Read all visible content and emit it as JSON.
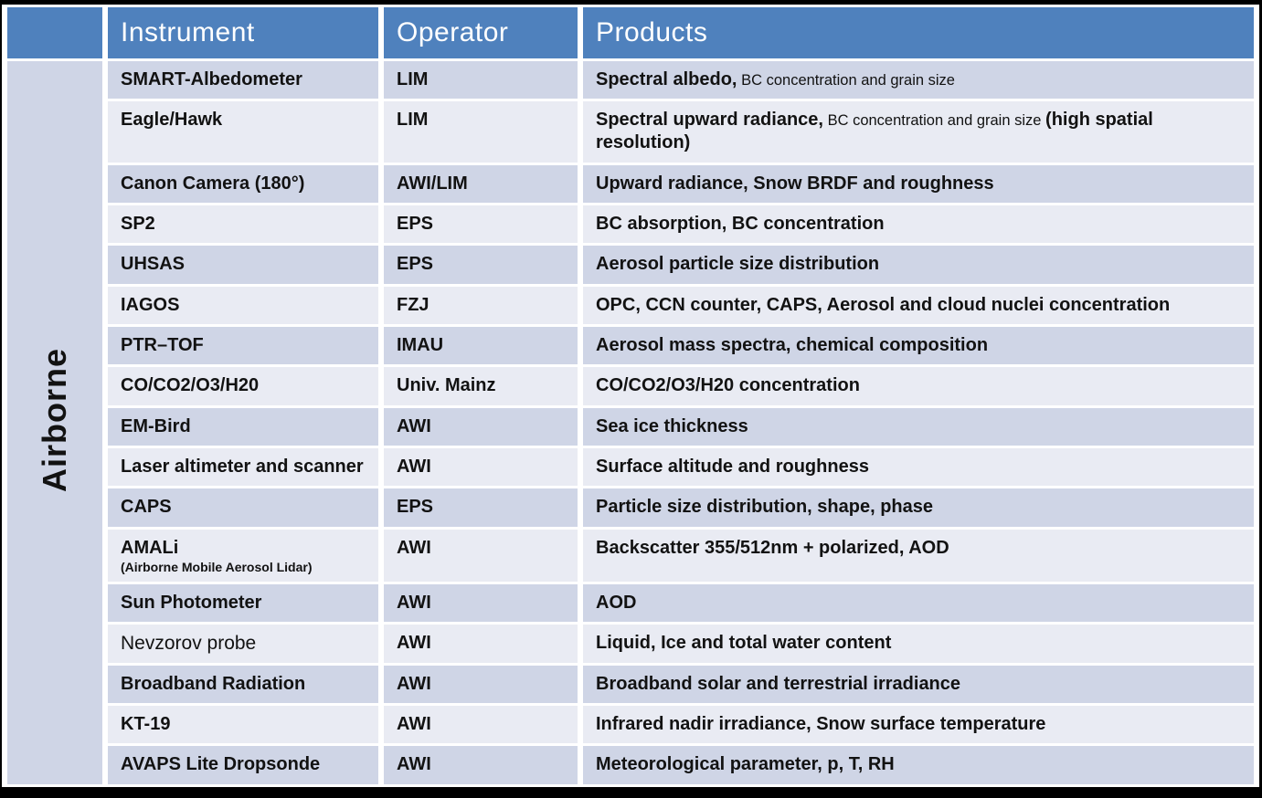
{
  "colors": {
    "header_bg": "#4F81BD",
    "band_dark": "#CFD5E6",
    "band_light": "#E9EBF3",
    "header_text": "#FFFFFF",
    "body_text": "#121212",
    "frame": "#000000",
    "gap": "#FFFFFF"
  },
  "table": {
    "group_label": "Airborne",
    "columns": [
      "Instrument",
      "Operator",
      "Products"
    ],
    "rows": [
      {
        "instrument": "SMART-Albedometer",
        "operator": "LIM",
        "products": [
          {
            "text": "Spectral albedo,",
            "style": "primary"
          },
          {
            "text": " BC concentration and grain size",
            "style": "secondary"
          }
        ]
      },
      {
        "instrument": "Eagle/Hawk",
        "operator": "LIM",
        "products": [
          {
            "text": "Spectral upward radiance,",
            "style": "primary"
          },
          {
            "text": " BC concentration and grain size ",
            "style": "secondary"
          },
          {
            "text": "  (high spatial resolution)",
            "style": "primary"
          }
        ]
      },
      {
        "instrument": "Canon Camera (180°)",
        "operator": "AWI/LIM",
        "products": [
          {
            "text": "Upward radiance, Snow BRDF and roughness",
            "style": "primary"
          }
        ]
      },
      {
        "instrument": "SP2",
        "operator": "EPS",
        "products": [
          {
            "text": "BC absorption, BC concentration",
            "style": "primary"
          }
        ]
      },
      {
        "instrument": "UHSAS",
        "operator": "EPS",
        "products": [
          {
            "text": "Aerosol particle size distribution",
            "style": "primary"
          }
        ]
      },
      {
        "instrument": "IAGOS",
        "operator": "FZJ",
        "products": [
          {
            "text": "OPC, CCN counter, CAPS, Aerosol and cloud nuclei concentration",
            "style": "primary"
          }
        ]
      },
      {
        "instrument": "PTR–TOF",
        "operator": "IMAU",
        "products": [
          {
            "text": "Aerosol mass spectra, chemical composition",
            "style": "primary"
          }
        ]
      },
      {
        "instrument": "CO/CO2/O3/H20",
        "operator": "Univ. Mainz",
        "products": [
          {
            "text": "CO/CO2/O3/H20 concentration",
            "style": "primary"
          }
        ]
      },
      {
        "instrument": "EM-Bird",
        "operator": "AWI",
        "products": [
          {
            "text": "Sea ice thickness",
            "style": "primary"
          }
        ]
      },
      {
        "instrument": "Laser altimeter and scanner",
        "operator": "AWI",
        "products": [
          {
            "text": "Surface altitude and roughness",
            "style": "primary"
          }
        ]
      },
      {
        "instrument": "CAPS",
        "operator": "EPS",
        "products": [
          {
            "text": "Particle size distribution, shape, phase",
            "style": "primary"
          }
        ]
      },
      {
        "instrument": "AMALi",
        "instrument_sub": "(Airborne Mobile Aerosol Lidar)",
        "operator": "AWI",
        "products": [
          {
            "text": "Backscatter 355/512nm + polarized, AOD",
            "style": "primary"
          }
        ]
      },
      {
        "instrument": "Sun Photometer",
        "operator": "AWI",
        "products": [
          {
            "text": "AOD",
            "style": "primary"
          }
        ]
      },
      {
        "instrument": "Nevzorov probe",
        "instrument_style": "regular",
        "operator": "AWI",
        "products": [
          {
            "text": "Liquid, Ice and total water content",
            "style": "primary"
          }
        ]
      },
      {
        "instrument": "Broadband Radiation",
        "operator": "AWI",
        "products": [
          {
            "text": "Broadband solar and terrestrial irradiance",
            "style": "primary"
          }
        ]
      },
      {
        "instrument": "KT-19",
        "operator": "AWI",
        "products": [
          {
            "text": "Infrared nadir irradiance, Snow surface temperature",
            "style": "primary"
          }
        ]
      },
      {
        "instrument": "AVAPS Lite Dropsonde",
        "operator": "AWI",
        "products": [
          {
            "text": "Meteorological parameter, p, T, RH",
            "style": "primary"
          }
        ]
      }
    ]
  }
}
